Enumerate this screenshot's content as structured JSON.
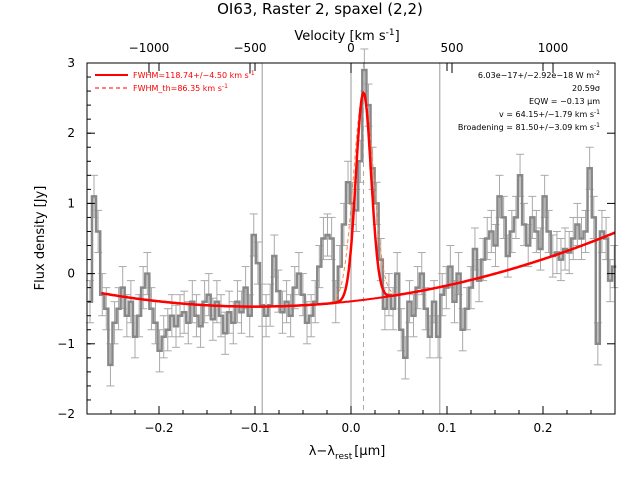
{
  "chart_data": {
    "type": "line",
    "title": "OI63, Raster 2, spaxel (2,2)",
    "xlabel": "λ−λ",
    "xlabel_sub": "rest",
    "xlabel_unit": "[μm]",
    "ylabel": "Flux density [Jy]",
    "top_axis_label": "Velocity [km s",
    "top_axis_label_sup": "-1",
    "top_axis_label_end": "]",
    "xlim": [
      -0.275,
      0.275
    ],
    "ylim": [
      -2,
      3
    ],
    "x_ticks": [
      "−0.2",
      "−0.1",
      "0.0",
      "0.1",
      "0.2"
    ],
    "x_tick_values": [
      -0.2,
      -0.1,
      0.0,
      0.1,
      0.2
    ],
    "y_ticks": [
      "−2",
      "−1",
      "0",
      "1",
      "2",
      "3"
    ],
    "y_tick_values": [
      -2,
      -1,
      0,
      1,
      2,
      3
    ],
    "top_ticks": [
      "−1000",
      "−500",
      "0",
      "500",
      "1000"
    ],
    "top_tick_values": [
      -1000,
      -500,
      0,
      500,
      1000
    ],
    "velocity_per_micron": 4752,
    "vertical_lines_x": [
      -0.0925,
      0.0,
      0.0925
    ],
    "legend": [
      {
        "label": "FWHM=118.74+/−4.50 km s",
        "sup": "-1",
        "style": "solid"
      },
      {
        "label": "FWHM_th=86.35 km s",
        "sup": "-1",
        "style": "dashed"
      }
    ],
    "annotations": [
      "6.03e−17+/−2.92e−18 W m",
      "20.59σ",
      "EQW = −0.13 μm",
      "v = 64.15+/−1.79 km s",
      "Broadening = 81.50+/−3.09 km s"
    ],
    "annotation_sups": [
      "-2",
      "",
      "",
      "-1",
      "-1"
    ],
    "continuum": {
      "x0": -0.1,
      "c0": -0.47,
      "c2": 7.5
    },
    "gaussian_fit": {
      "amplitude": 2.95,
      "center": 0.013,
      "sigma": 0.0079
    },
    "gaussian_thermal": {
      "amplitude": 2.95,
      "center": 0.013,
      "sigma": 0.0104
    },
    "line_center_dashed_x": 0.013,
    "series": [
      {
        "kind": "data",
        "x": [
          -0.2719,
          -0.2677,
          -0.2634,
          -0.2591,
          -0.2549,
          -0.2506,
          -0.2463,
          -0.2421,
          -0.2378,
          -0.2335,
          -0.2293,
          -0.225,
          -0.2207,
          -0.2165,
          -0.2122,
          -0.2079,
          -0.2037,
          -0.1994,
          -0.1951,
          -0.1909,
          -0.1866,
          -0.1823,
          -0.1781,
          -0.1738,
          -0.1695,
          -0.1653,
          -0.161,
          -0.1567,
          -0.1525,
          -0.1482,
          -0.1439,
          -0.1397,
          -0.1354,
          -0.1311,
          -0.1269,
          -0.1226,
          -0.1183,
          -0.1141,
          -0.1098,
          -0.1055,
          -0.1013,
          -0.097,
          -0.0927,
          -0.0885,
          -0.0842,
          -0.0799,
          -0.0757,
          -0.0714,
          -0.0671,
          -0.0629,
          -0.0586,
          -0.0543,
          -0.0501,
          -0.0458,
          -0.0415,
          -0.0373,
          -0.033,
          -0.0287,
          -0.0245,
          -0.0202,
          -0.0159,
          -0.0117,
          -0.0074,
          -0.0031,
          0.0011,
          0.0054,
          0.0097,
          0.0139,
          0.0182,
          0.0225,
          0.0267,
          0.031,
          0.0353,
          0.0395,
          0.0438,
          0.0481,
          0.0523,
          0.0566,
          0.0609,
          0.0651,
          0.0694,
          0.0737,
          0.0779,
          0.0822,
          0.0865,
          0.0907,
          0.095,
          0.0993,
          0.1035,
          0.1078,
          0.1121,
          0.1163,
          0.1206,
          0.1249,
          0.1291,
          0.1334,
          0.1377,
          0.1419,
          0.1462,
          0.1505,
          0.1547,
          0.159,
          0.1633,
          0.1675,
          0.1718,
          0.1761,
          0.1803,
          0.1846,
          0.1889,
          0.1931,
          0.1974,
          0.2017,
          0.2059,
          0.2102,
          0.2145,
          0.2187,
          0.223,
          0.2273,
          0.2315,
          0.2358,
          0.2401,
          0.2443,
          0.2486,
          0.2529,
          0.2571,
          0.2614,
          0.2657,
          0.2699,
          0.2742
        ],
        "y": [
          -0.4,
          1.1,
          0.6,
          -0.3,
          -0.5,
          -1.3,
          -0.7,
          -0.5,
          -0.2,
          -0.6,
          -0.4,
          -0.9,
          -0.6,
          -0.2,
          0.0,
          -0.5,
          -0.7,
          -1.1,
          -0.9,
          -0.8,
          -0.6,
          -0.75,
          -0.6,
          -0.55,
          -0.7,
          -0.4,
          -0.6,
          -0.75,
          -0.4,
          -0.3,
          -0.65,
          -0.4,
          -0.6,
          -0.85,
          -0.55,
          -0.7,
          -0.4,
          -0.55,
          -0.2,
          -0.6,
          0.55,
          0.15,
          -0.45,
          -0.6,
          -0.45,
          0.25,
          -0.25,
          -0.55,
          -0.4,
          -0.6,
          -0.2,
          0.0,
          -0.3,
          -0.7,
          -0.6,
          -0.4,
          0.1,
          0.5,
          0.55,
          0.5,
          -0.4,
          0.1,
          0.7,
          1.3,
          1.0,
          0.9,
          1.6,
          2.9,
          2.4,
          1.5,
          1.0,
          0.2,
          -0.5,
          -0.3,
          -0.5,
          0.0,
          -0.8,
          -1.2,
          -0.4,
          -0.6,
          -0.2,
          0.0,
          -0.5,
          -0.9,
          -0.4,
          -0.9,
          -0.3,
          -0.2,
          0.1,
          -0.4,
          0.0,
          -0.8,
          -0.5,
          -0.2,
          0.35,
          -0.1,
          0.2,
          0.5,
          0.6,
          0.4,
          1.1,
          0.8,
          0.25,
          0.6,
          0.8,
          1.4,
          0.7,
          0.4,
          0.8,
          0.6,
          0.35,
          1.1,
          0.6,
          0.25,
          0.3,
          0.2,
          0.35,
          0.3,
          0.5,
          0.7,
          0.5,
          0.6,
          1.5,
          0.8,
          -1.0,
          0.6,
          0.5,
          -0.1,
          0.1
        ],
        "yerr": 0.3,
        "color": "#888888"
      },
      {
        "kind": "continuum",
        "color": "#ff0000"
      },
      {
        "kind": "gaussian_fit",
        "color": "#ff0000"
      },
      {
        "kind": "gaussian_thermal",
        "color": "#ff8040"
      }
    ]
  }
}
